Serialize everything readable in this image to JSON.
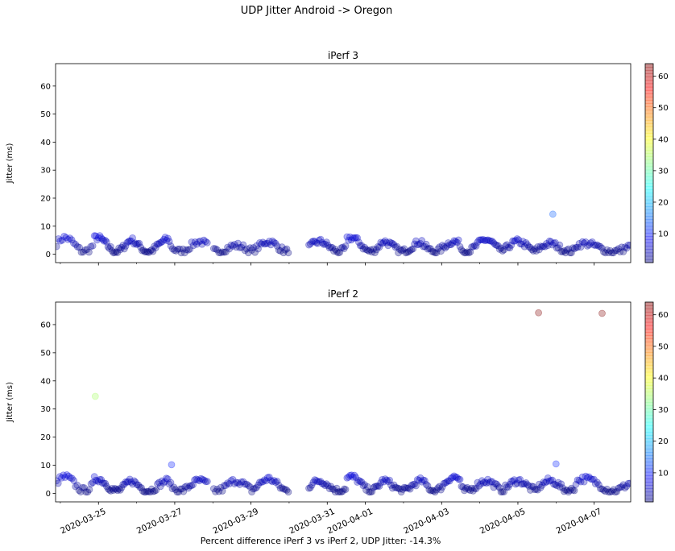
{
  "figure": {
    "suptitle": "UDP Jitter Android -> Oregon",
    "xlabel": "Percent difference iPerf 3 vs iPerf 2, UDP Jitter: -14.3%"
  },
  "chart_data": [
    {
      "type": "scatter",
      "title": "iPerf 3",
      "ylabel": "Jitter (ms)",
      "xlabel": "",
      "xlim": [
        "2020-03-23T21:00",
        "2020-04-07T23:00"
      ],
      "ylim": [
        -3,
        68
      ],
      "yticks": [
        0,
        10,
        20,
        30,
        40,
        50,
        60
      ],
      "xtick_labels": [],
      "colorbar": {
        "cmap": "jet",
        "alpha": 0.3,
        "range": [
          0.8,
          64
        ],
        "ticks": [
          10,
          20,
          30,
          40,
          50,
          60
        ]
      },
      "grid": false,
      "series": [
        {
          "x_start": "2020-03-23T21:00",
          "x_end": "2020-03-24T21:00",
          "approx_y_range": [
            1,
            8
          ],
          "count": 20
        },
        {
          "x_start": "2020-03-24T21:00",
          "x_end": "2020-03-25T21:00",
          "approx_y_range": [
            1,
            8
          ],
          "count": 28
        },
        {
          "x_start": "2020-03-25T21:00",
          "x_end": "2020-03-26T21:00",
          "approx_y_range": [
            1,
            7
          ],
          "count": 28
        },
        {
          "x_start": "2020-03-26T21:00",
          "x_end": "2020-03-27T21:00",
          "approx_y_range": [
            1,
            6
          ],
          "count": 22
        },
        {
          "x_start": "2020-03-28T00:00",
          "x_end": "2020-03-29T00:00",
          "approx_y_range": [
            1,
            4
          ],
          "count": 22
        },
        {
          "x_start": "2020-03-29T00:00",
          "x_end": "2020-03-30T00:00",
          "approx_y_range": [
            1,
            6
          ],
          "count": 24
        },
        {
          "x_start": "2020-03-30T12:00",
          "x_end": "2020-03-31T12:00",
          "approx_y_range": [
            1,
            6
          ],
          "count": 26
        },
        {
          "x_start": "2020-03-31T12:00",
          "x_end": "2020-04-01T12:00",
          "approx_y_range": [
            1,
            8
          ],
          "count": 26
        },
        {
          "x_start": "2020-04-01T12:00",
          "x_end": "2020-04-02T12:00",
          "approx_y_range": [
            1,
            6
          ],
          "count": 26
        },
        {
          "x_start": "2020-04-02T12:00",
          "x_end": "2020-04-03T12:00",
          "approx_y_range": [
            1,
            6
          ],
          "count": 26
        },
        {
          "x_start": "2020-04-03T12:00",
          "x_end": "2020-04-04T12:00",
          "approx_y_range": [
            1,
            7
          ],
          "count": 26
        },
        {
          "x_start": "2020-04-04T12:00",
          "x_end": "2020-04-05T12:00",
          "approx_y_range": [
            1,
            6
          ],
          "count": 26
        },
        {
          "x_start": "2020-04-05T12:00",
          "x_end": "2020-04-06T12:00",
          "approx_y_range": [
            1,
            5
          ],
          "count": 26
        },
        {
          "x_start": "2020-04-06T12:00",
          "x_end": "2020-04-07T23:00",
          "approx_y_range": [
            1,
            5
          ],
          "count": 34
        }
      ],
      "outliers": [
        {
          "x": "2020-04-05T22:00",
          "y": 14.3
        }
      ]
    },
    {
      "type": "scatter",
      "title": "iPerf 2",
      "ylabel": "Jitter (ms)",
      "xlabel": "",
      "xlim": [
        "2020-03-23T21:00",
        "2020-04-07T23:00"
      ],
      "ylim": [
        -3,
        68
      ],
      "yticks": [
        0,
        10,
        20,
        30,
        40,
        50,
        60
      ],
      "xtick_labels": [
        {
          "x": "2020-03-25",
          "label": "2020-03-25"
        },
        {
          "x": "2020-03-27",
          "label": "2020-03-27"
        },
        {
          "x": "2020-03-29",
          "label": "2020-03-29"
        },
        {
          "x": "2020-03-31",
          "label": "2020-03-31"
        },
        {
          "x": "2020-04-01",
          "label": "2020-04-01"
        },
        {
          "x": "2020-04-03",
          "label": "2020-04-03"
        },
        {
          "x": "2020-04-05",
          "label": "2020-04-05"
        },
        {
          "x": "2020-04-07",
          "label": "2020-04-07"
        }
      ],
      "minor_xticks": [
        "2020-03-24",
        "2020-03-26",
        "2020-03-28",
        "2020-03-30",
        "2020-04-02",
        "2020-04-04",
        "2020-04-06"
      ],
      "colorbar": {
        "cmap": "jet",
        "alpha": 0.3,
        "range": [
          0.8,
          64
        ],
        "ticks": [
          10,
          20,
          30,
          40,
          50,
          60
        ]
      },
      "grid": false,
      "series": [
        {
          "x_start": "2020-03-23T21:00",
          "x_end": "2020-03-24T21:00",
          "approx_y_range": [
            1,
            8
          ],
          "count": 22
        },
        {
          "x_start": "2020-03-24T21:00",
          "x_end": "2020-03-25T21:00",
          "approx_y_range": [
            1,
            7
          ],
          "count": 28
        },
        {
          "x_start": "2020-03-25T21:00",
          "x_end": "2020-03-26T21:00",
          "approx_y_range": [
            1,
            6
          ],
          "count": 26
        },
        {
          "x_start": "2020-03-26T21:00",
          "x_end": "2020-03-27T21:00",
          "approx_y_range": [
            1,
            6
          ],
          "count": 24
        },
        {
          "x_start": "2020-03-28T00:00",
          "x_end": "2020-03-29T00:00",
          "approx_y_range": [
            1,
            6
          ],
          "count": 22
        },
        {
          "x_start": "2020-03-29T00:00",
          "x_end": "2020-03-30T00:00",
          "approx_y_range": [
            1,
            7
          ],
          "count": 24
        },
        {
          "x_start": "2020-03-30T12:00",
          "x_end": "2020-03-31T12:00",
          "approx_y_range": [
            1,
            6
          ],
          "count": 26
        },
        {
          "x_start": "2020-03-31T12:00",
          "x_end": "2020-04-01T12:00",
          "approx_y_range": [
            1,
            8
          ],
          "count": 26
        },
        {
          "x_start": "2020-04-01T12:00",
          "x_end": "2020-04-02T12:00",
          "approx_y_range": [
            1,
            6
          ],
          "count": 26
        },
        {
          "x_start": "2020-04-02T12:00",
          "x_end": "2020-04-03T12:00",
          "approx_y_range": [
            1,
            8
          ],
          "count": 26
        },
        {
          "x_start": "2020-04-03T12:00",
          "x_end": "2020-04-04T12:00",
          "approx_y_range": [
            1,
            6
          ],
          "count": 26
        },
        {
          "x_start": "2020-04-04T12:00",
          "x_end": "2020-04-05T12:00",
          "approx_y_range": [
            1,
            6
          ],
          "count": 26
        },
        {
          "x_start": "2020-04-05T12:00",
          "x_end": "2020-04-06T12:00",
          "approx_y_range": [
            1,
            6
          ],
          "count": 26
        },
        {
          "x_start": "2020-04-06T12:00",
          "x_end": "2020-04-07T23:00",
          "approx_y_range": [
            1,
            7
          ],
          "count": 34
        }
      ],
      "outliers": [
        {
          "x": "2020-03-24T22:00",
          "y": 34.5
        },
        {
          "x": "2020-03-26T22:00",
          "y": 10.2
        },
        {
          "x": "2020-04-05T13:00",
          "y": 64.2
        },
        {
          "x": "2020-04-06T00:00",
          "y": 10.5
        },
        {
          "x": "2020-04-07T05:00",
          "y": 64.0
        }
      ]
    }
  ]
}
